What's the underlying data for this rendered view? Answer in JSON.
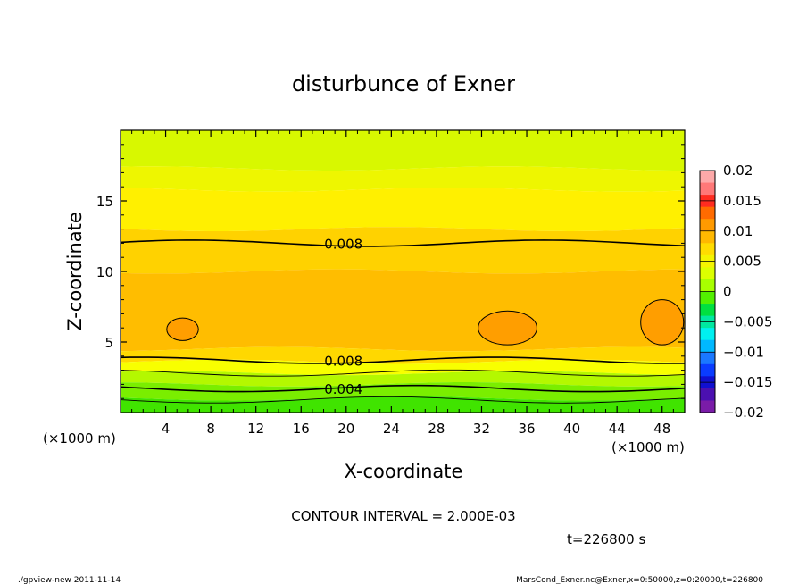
{
  "chart_data": {
    "type": "heatmap",
    "title": "disturbunce of Exner",
    "xlabel": "X-coordinate",
    "ylabel": "Z-coordinate",
    "x_unit_left": "(×1000 m)",
    "x_unit_right": "(×1000 m)",
    "xlim": [
      0,
      50
    ],
    "ylim": [
      0,
      20
    ],
    "x_ticks": [
      4,
      8,
      12,
      16,
      20,
      24,
      28,
      32,
      36,
      40,
      44,
      48
    ],
    "y_ticks": [
      5,
      10,
      15
    ],
    "contour_interval_text": "CONTOUR INTERVAL = 2.000E-03",
    "contour_labels": [
      {
        "text": "0.008",
        "x": 17.7,
        "z": 12.0
      },
      {
        "text": "0.008",
        "x": 17.7,
        "z": 3.7
      },
      {
        "text": "0.004",
        "x": 17.7,
        "z": 1.7
      }
    ],
    "colorbar": {
      "labels": [
        "0.02",
        "0.015",
        "0.01",
        "0.005",
        "0",
        "−0.005",
        "−0.01",
        "−0.015",
        "−0.02"
      ],
      "levels": [
        0.02,
        0.015,
        0.01,
        0.005,
        0,
        -0.005,
        -0.01,
        -0.015,
        -0.02
      ],
      "colors": [
        "#fda9a9",
        "#ff7878",
        "#ff2c20",
        "#ff6b00",
        "#ff9a00",
        "#ffb800",
        "#ffdc00",
        "#f4f400",
        "#dcff00",
        "#a8ff00",
        "#52f000",
        "#00e040",
        "#00e8a0",
        "#00f0f0",
        "#00b8ff",
        "#1a78ff",
        "#0a3cff",
        "#1010d0",
        "#4b10b0",
        "#7a1ca8"
      ]
    },
    "bands": [
      {
        "name": "band-top",
        "z_range": [
          17.3,
          20
        ],
        "color": "#d8f800"
      },
      {
        "name": "band-upper",
        "z_range": [
          15.8,
          17.3
        ],
        "color": "#eef600"
      },
      {
        "name": "band-mid-upper",
        "z_range": [
          13.0,
          15.8
        ],
        "color": "#fff000"
      },
      {
        "name": "band-mid",
        "z_range": [
          10.0,
          13.0
        ],
        "color": "#ffd200"
      },
      {
        "name": "band-core",
        "z_range": [
          4.5,
          10.0
        ],
        "color": "#ffbd00"
      },
      {
        "name": "band-lower",
        "z_range": [
          3.6,
          4.5
        ],
        "color": "#ffd800"
      },
      {
        "name": "band-low1",
        "z_range": [
          2.8,
          3.6
        ],
        "color": "#f8ff00"
      },
      {
        "name": "band-low2",
        "z_range": [
          2.0,
          2.8
        ],
        "color": "#b4f800"
      },
      {
        "name": "band-low3",
        "z_range": [
          1.0,
          2.0
        ],
        "color": "#7aee00"
      },
      {
        "name": "band-bottom",
        "z_range": [
          0,
          1.0
        ],
        "color": "#40e400"
      }
    ],
    "maxima": [
      {
        "x": 5.5,
        "z": 5.9,
        "rx": 1.4,
        "rz": 0.8
      },
      {
        "x": 34.3,
        "z": 6.0,
        "rx": 2.6,
        "rz": 1.2
      },
      {
        "x": 48.0,
        "z": 6.4,
        "rx": 1.9,
        "rz": 1.6
      }
    ]
  },
  "time_label": "t=226800 s",
  "footer_left": "./gpview-new   2011-11-14",
  "footer_right": "MarsCond_Exner.nc@Exner,x=0:50000,z=0:20000,t=226800"
}
